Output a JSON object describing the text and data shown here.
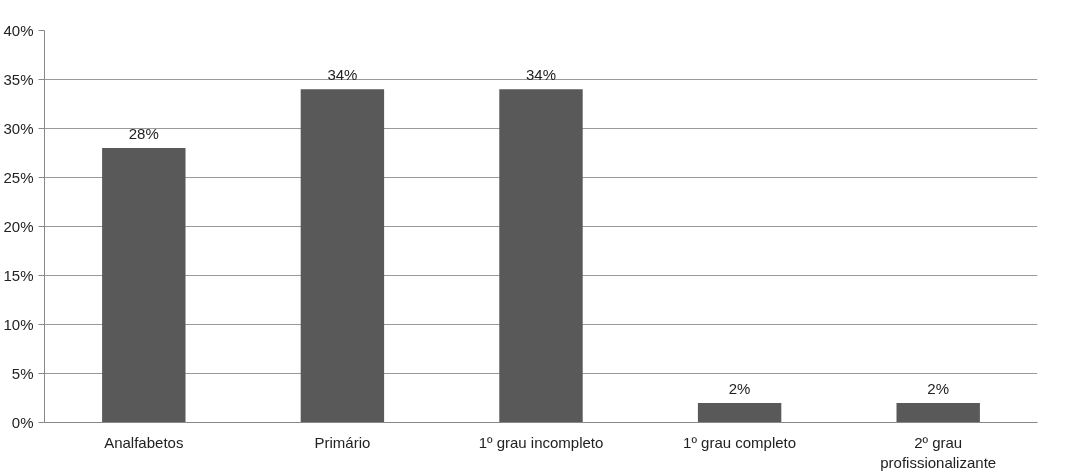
{
  "chart_data": {
    "type": "bar",
    "categories": [
      "Analfabetos",
      "Primário",
      "1º grau incompleto",
      "1º grau completo",
      "2º grau profissionalizante"
    ],
    "values": [
      28,
      34,
      34,
      2,
      2
    ],
    "value_labels": [
      "28%",
      "34%",
      "34%",
      "2%",
      "2%"
    ],
    "color": "#595959",
    "ylim": [
      0,
      40
    ],
    "yticks": [
      {
        "value": 0,
        "label": "0%"
      },
      {
        "value": 5,
        "label": "5%"
      },
      {
        "value": 10,
        "label": "10%"
      },
      {
        "value": 15,
        "label": "15%"
      },
      {
        "value": 20,
        "label": "20%"
      },
      {
        "value": 25,
        "label": "25%"
      },
      {
        "value": 30,
        "label": "30%"
      },
      {
        "value": 35,
        "label": "35%"
      },
      {
        "value": 40,
        "label": "40%"
      }
    ],
    "grid": "y"
  }
}
